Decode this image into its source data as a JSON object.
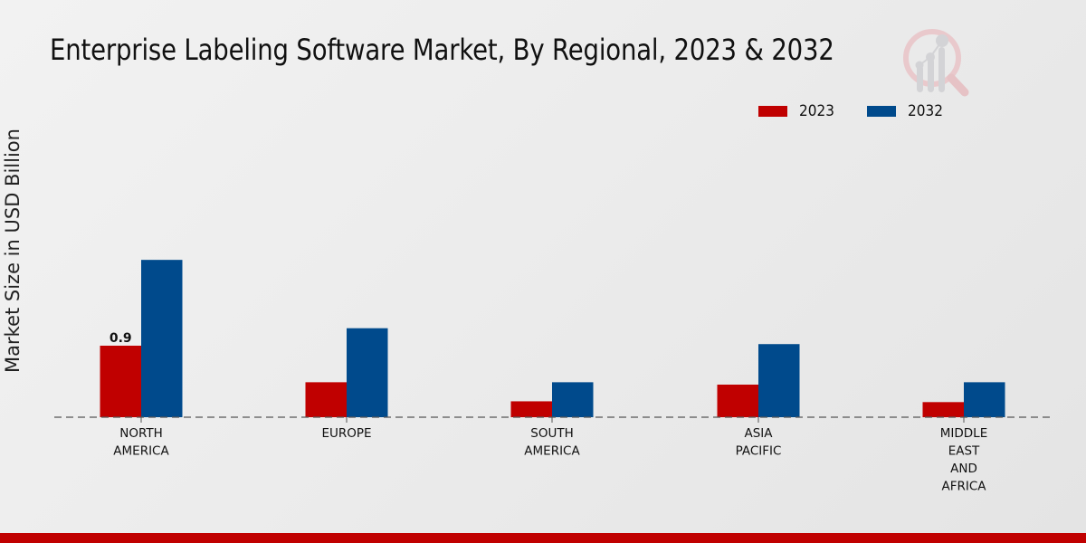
{
  "chart_data": {
    "type": "bar",
    "title": "Enterprise Labeling Software Market, By Regional, 2023 & 2032",
    "xlabel": "",
    "ylabel": "Market Size in USD Billion",
    "categories": [
      [
        "NORTH",
        "AMERICA"
      ],
      [
        "EUROPE"
      ],
      [
        "SOUTH",
        "AMERICA"
      ],
      [
        "ASIA",
        "PACIFIC"
      ],
      [
        "MIDDLE",
        "EAST",
        "AND",
        "AFRICA"
      ]
    ],
    "series": [
      {
        "name": "2023",
        "color": "#c00000",
        "values": [
          0.9,
          0.44,
          0.2,
          0.41,
          0.19
        ]
      },
      {
        "name": "2032",
        "color": "#004a8c",
        "values": [
          1.98,
          1.12,
          0.44,
          0.92,
          0.44
        ]
      }
    ],
    "data_labels": [
      {
        "series": 0,
        "index": 0,
        "text": "0.9"
      }
    ],
    "ylim": [
      0,
      2.3
    ],
    "grid": false,
    "legend_position": "top-right"
  },
  "footer": {
    "color": "#c00000"
  },
  "logo": {
    "icon": "market-research-magnifier-logo"
  }
}
